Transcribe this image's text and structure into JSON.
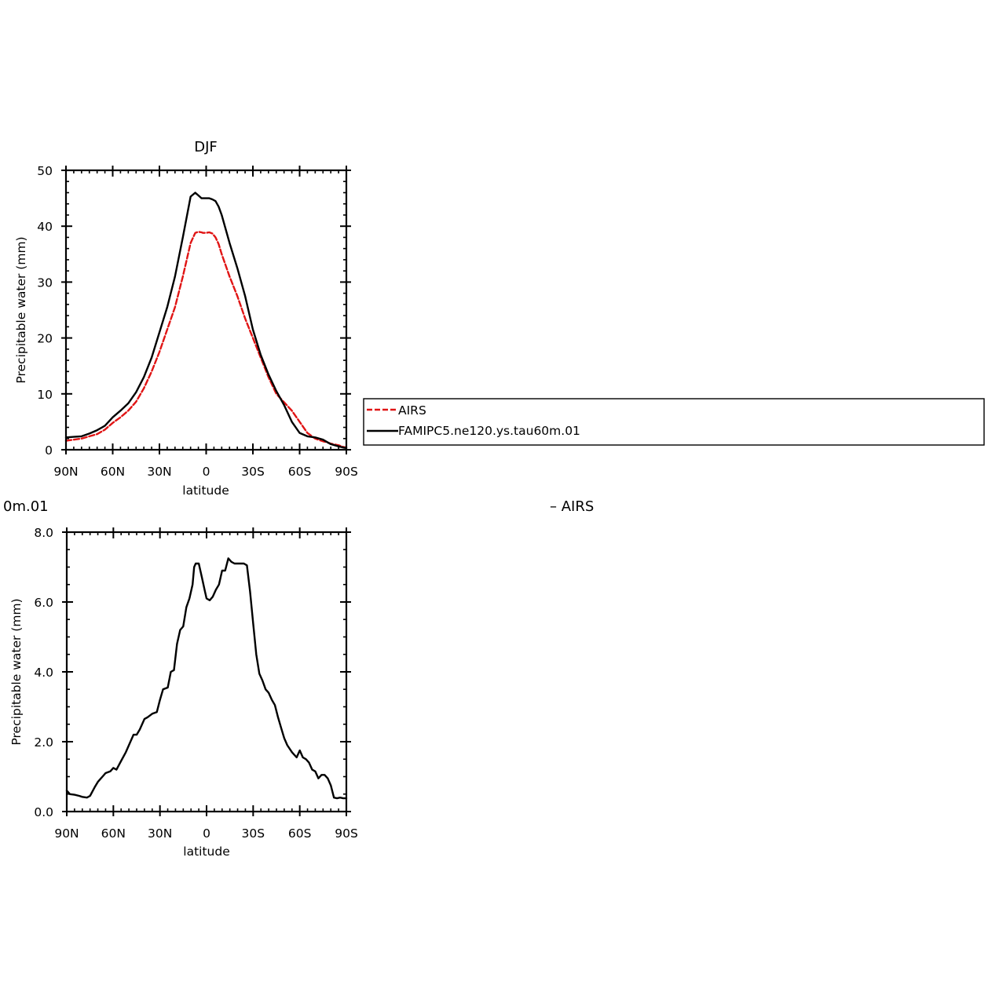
{
  "chart_data": [
    {
      "type": "line",
      "title": "DJF",
      "xlabel": "latitude",
      "ylabel": "Precipitable water (mm)",
      "xlim": [
        -90,
        90
      ],
      "ylim": [
        0,
        50
      ],
      "x_ticks": [
        -90,
        -60,
        -30,
        0,
        30,
        60,
        90
      ],
      "x_tick_labels": [
        "90N",
        "60N",
        "30N",
        "0",
        "30S",
        "60S",
        "90S"
      ],
      "y_ticks": [
        0,
        10,
        20,
        30,
        40,
        50
      ],
      "y_tick_labels": [
        "0",
        "10",
        "20",
        "30",
        "40",
        "50"
      ],
      "grid": false,
      "legend": {
        "placement": "right",
        "entries": [
          "AIRS",
          "FAMIPC5.ne120.ys.tau60m.01"
        ]
      },
      "series": [
        {
          "name": "AIRS",
          "color": "#e01414",
          "dash": "dashed",
          "x": [
            -90,
            -85,
            -80,
            -75,
            -70,
            -65,
            -60,
            -55,
            -50,
            -45,
            -40,
            -35,
            -30,
            -25,
            -20,
            -15,
            -10,
            -7,
            -5,
            -3,
            -2,
            0,
            2,
            4,
            6,
            8,
            10,
            15,
            20,
            25,
            30,
            35,
            40,
            45,
            50,
            55,
            60,
            65,
            70,
            73,
            75,
            78,
            80,
            85,
            88,
            90
          ],
          "y": [
            1.6,
            1.8,
            2.0,
            2.4,
            2.8,
            3.6,
            4.8,
            5.8,
            7.0,
            8.6,
            11.0,
            14.0,
            17.5,
            21.5,
            25.5,
            31.0,
            37.0,
            38.8,
            39.0,
            38.9,
            38.8,
            38.8,
            38.9,
            38.7,
            38.0,
            36.8,
            35.0,
            31.0,
            27.5,
            23.5,
            20.0,
            16.5,
            13.0,
            10.0,
            8.5,
            7.0,
            5.0,
            3.0,
            2.0,
            1.7,
            1.5,
            1.3,
            1.1,
            0.8,
            0.5,
            0.4
          ]
        },
        {
          "name": "FAMIPC5.ne120.ys.tau60m.01",
          "color": "#000000",
          "dash": "solid",
          "x": [
            -90,
            -85,
            -80,
            -75,
            -70,
            -65,
            -60,
            -55,
            -50,
            -45,
            -40,
            -35,
            -30,
            -25,
            -20,
            -15,
            -10,
            -7,
            -5,
            -3,
            -1,
            0,
            2,
            4,
            6,
            8,
            10,
            15,
            20,
            25,
            30,
            35,
            40,
            45,
            50,
            55,
            60,
            65,
            70,
            75,
            80,
            85,
            88,
            90
          ],
          "y": [
            2.2,
            2.3,
            2.4,
            2.9,
            3.5,
            4.3,
            5.8,
            7.0,
            8.3,
            10.3,
            13.0,
            16.5,
            21.0,
            25.5,
            31.0,
            38.0,
            45.3,
            46.0,
            45.5,
            45.0,
            45.0,
            45.0,
            45.0,
            44.8,
            44.5,
            43.5,
            42.0,
            37.0,
            32.5,
            27.5,
            21.5,
            17.0,
            13.5,
            10.5,
            8.0,
            5.0,
            3.0,
            2.4,
            2.2,
            1.8,
            1.0,
            0.6,
            0.4,
            0.3
          ]
        }
      ]
    },
    {
      "type": "line",
      "title": "",
      "xlabel": "latitude",
      "ylabel": "Precipitable water (mm)",
      "xlim": [
        -90,
        90
      ],
      "ylim": [
        0,
        8
      ],
      "x_ticks": [
        -90,
        -60,
        -30,
        0,
        30,
        60,
        90
      ],
      "x_tick_labels": [
        "90N",
        "60N",
        "30N",
        "0",
        "30S",
        "60S",
        "90S"
      ],
      "y_ticks": [
        0,
        2,
        4,
        6,
        8
      ],
      "y_tick_labels": [
        "0.0",
        "2.0",
        "4.0",
        "6.0",
        "8.0"
      ],
      "grid": false,
      "title_fragments": {
        "left": "0m.01",
        "right": "– AIRS"
      },
      "series": [
        {
          "color": "#000000",
          "dash": "solid",
          "x": [
            -90,
            -88,
            -85,
            -82,
            -80,
            -77,
            -75,
            -72,
            -70,
            -67,
            -65,
            -62,
            -60,
            -58,
            -55,
            -52,
            -50,
            -47,
            -45,
            -43,
            -40,
            -38,
            -35,
            -32,
            -30,
            -28,
            -25,
            -23,
            -21,
            -19,
            -17,
            -15,
            -13,
            -11,
            -9,
            -8,
            -7,
            -5,
            -3,
            -1,
            0,
            2,
            4,
            6,
            8,
            10,
            12,
            14,
            16,
            18,
            20,
            22,
            24,
            26,
            28,
            30,
            32,
            34,
            36,
            38,
            40,
            42,
            44,
            46,
            48,
            50,
            52,
            55,
            58,
            60,
            62,
            64,
            66,
            68,
            70,
            72,
            74,
            76,
            78,
            80,
            82,
            84,
            86,
            88,
            90
          ],
          "y": [
            0.6,
            0.5,
            0.48,
            0.45,
            0.42,
            0.4,
            0.45,
            0.7,
            0.85,
            1.0,
            1.1,
            1.15,
            1.25,
            1.2,
            1.45,
            1.7,
            1.9,
            2.2,
            2.2,
            2.35,
            2.65,
            2.7,
            2.8,
            2.85,
            3.2,
            3.5,
            3.55,
            4.0,
            4.05,
            4.8,
            5.2,
            5.3,
            5.85,
            6.1,
            6.5,
            7.0,
            7.1,
            7.1,
            6.7,
            6.3,
            6.1,
            6.05,
            6.15,
            6.35,
            6.5,
            6.9,
            6.9,
            7.25,
            7.15,
            7.1,
            7.1,
            7.1,
            7.1,
            7.05,
            6.3,
            5.4,
            4.5,
            3.95,
            3.75,
            3.5,
            3.4,
            3.2,
            3.05,
            2.7,
            2.4,
            2.1,
            1.9,
            1.7,
            1.55,
            1.75,
            1.55,
            1.5,
            1.4,
            1.2,
            1.15,
            0.95,
            1.05,
            1.05,
            0.95,
            0.75,
            0.4,
            0.38,
            0.4,
            0.38,
            0.38
          ]
        }
      ]
    }
  ]
}
